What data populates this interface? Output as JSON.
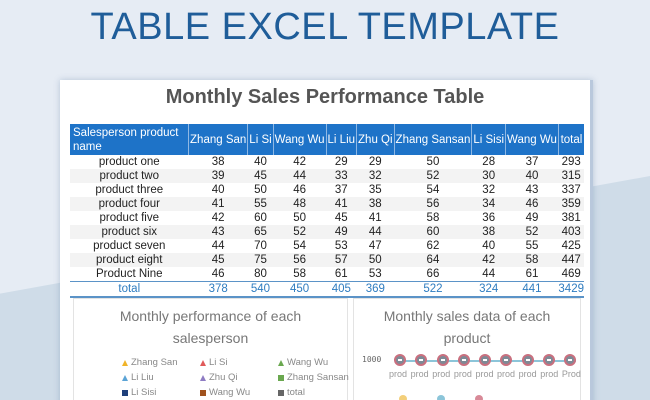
{
  "header": {
    "title": "TABLE EXCEL TEMPLATE"
  },
  "sheet": {
    "title": "Monthly Sales Performance Table",
    "columns": [
      "Salesperson product name",
      "Zhang San",
      "Li Si",
      "Wang Wu",
      "Li Liu",
      "Zhu Qi",
      "Zhang Sansan",
      "Li Sisi",
      "Wang Wu",
      "total"
    ],
    "rows": [
      {
        "name": "product one",
        "values": [
          38,
          40,
          42,
          29,
          29,
          50,
          28,
          37,
          293
        ]
      },
      {
        "name": "product two",
        "values": [
          39,
          45,
          44,
          33,
          32,
          52,
          30,
          40,
          315
        ]
      },
      {
        "name": "product three",
        "values": [
          40,
          50,
          46,
          37,
          35,
          54,
          32,
          43,
          337
        ]
      },
      {
        "name": "product four",
        "values": [
          41,
          55,
          48,
          41,
          38,
          56,
          34,
          46,
          359
        ]
      },
      {
        "name": "product five",
        "values": [
          42,
          60,
          50,
          45,
          41,
          58,
          36,
          49,
          381
        ]
      },
      {
        "name": "product six",
        "values": [
          43,
          65,
          52,
          49,
          44,
          60,
          38,
          52,
          403
        ]
      },
      {
        "name": "product seven",
        "values": [
          44,
          70,
          54,
          53,
          47,
          62,
          40,
          55,
          425
        ]
      },
      {
        "name": "product eight",
        "values": [
          45,
          75,
          56,
          57,
          50,
          64,
          42,
          58,
          447
        ]
      },
      {
        "name": "Product Nine",
        "values": [
          46,
          80,
          58,
          61,
          53,
          66,
          44,
          61,
          469
        ]
      }
    ],
    "total": {
      "name": "total",
      "values": [
        378,
        540,
        450,
        405,
        369,
        522,
        324,
        441,
        3429
      ]
    }
  },
  "chart_left": {
    "title_line1": "Monthly performance of each",
    "title_line2": "salesperson",
    "legend": [
      {
        "label": "Zhang San",
        "color": "#f0b429",
        "shape": "triangle"
      },
      {
        "label": "Li Si",
        "color": "#e05a5a",
        "shape": "triangle"
      },
      {
        "label": "Wang Wu",
        "color": "#6aa84f",
        "shape": "triangle"
      },
      {
        "label": "Li Liu",
        "color": "#5ba4d6",
        "shape": "triangle"
      },
      {
        "label": "Zhu Qi",
        "color": "#8e7cc3",
        "shape": "triangle"
      },
      {
        "label": "Zhang Sansan",
        "color": "#6aa84f",
        "shape": "square"
      },
      {
        "label": "Li Sisi",
        "color": "#1f3f7a",
        "shape": "square"
      },
      {
        "label": "Wang Wu",
        "color": "#a0521e",
        "shape": "square"
      },
      {
        "label": "total",
        "color": "#666666",
        "shape": "square"
      }
    ]
  },
  "chart_right": {
    "title_line1": "Monthly sales data of each",
    "title_line2": "product",
    "y_tick": "1000",
    "x_labels": [
      "prod",
      "prod",
      "prod",
      "prod",
      "prod",
      "prod",
      "prod",
      "prod",
      "Prod"
    ]
  },
  "chart_data": [
    {
      "type": "line",
      "title": "Monthly performance of each salesperson",
      "categories": [
        "product one",
        "product two",
        "product three",
        "product four",
        "product five",
        "product six",
        "product seven",
        "product eight",
        "Product Nine"
      ],
      "series": [
        {
          "name": "Zhang San",
          "values": [
            38,
            39,
            40,
            41,
            42,
            43,
            44,
            45,
            46
          ]
        },
        {
          "name": "Li Si",
          "values": [
            40,
            45,
            50,
            55,
            60,
            65,
            70,
            75,
            80
          ]
        },
        {
          "name": "Wang Wu",
          "values": [
            42,
            44,
            46,
            48,
            50,
            52,
            54,
            56,
            58
          ]
        },
        {
          "name": "Li Liu",
          "values": [
            29,
            33,
            37,
            41,
            45,
            49,
            53,
            57,
            61
          ]
        },
        {
          "name": "Zhu Qi",
          "values": [
            29,
            32,
            35,
            38,
            41,
            44,
            47,
            50,
            53
          ]
        },
        {
          "name": "Zhang Sansan",
          "values": [
            50,
            52,
            54,
            56,
            58,
            60,
            62,
            64,
            66
          ]
        },
        {
          "name": "Li Sisi",
          "values": [
            28,
            30,
            32,
            34,
            36,
            38,
            40,
            42,
            44
          ]
        },
        {
          "name": "Wang Wu",
          "values": [
            37,
            40,
            43,
            46,
            49,
            52,
            55,
            58,
            61
          ]
        },
        {
          "name": "total",
          "values": [
            293,
            315,
            337,
            359,
            381,
            403,
            425,
            447,
            469
          ]
        }
      ],
      "legend_position": "top"
    },
    {
      "type": "line",
      "title": "Monthly sales data of each product",
      "categories": [
        "prod",
        "prod",
        "prod",
        "prod",
        "prod",
        "prod",
        "prod",
        "prod",
        "Prod"
      ],
      "ylabel": "",
      "y_ticks": [
        "1000"
      ]
    }
  ]
}
